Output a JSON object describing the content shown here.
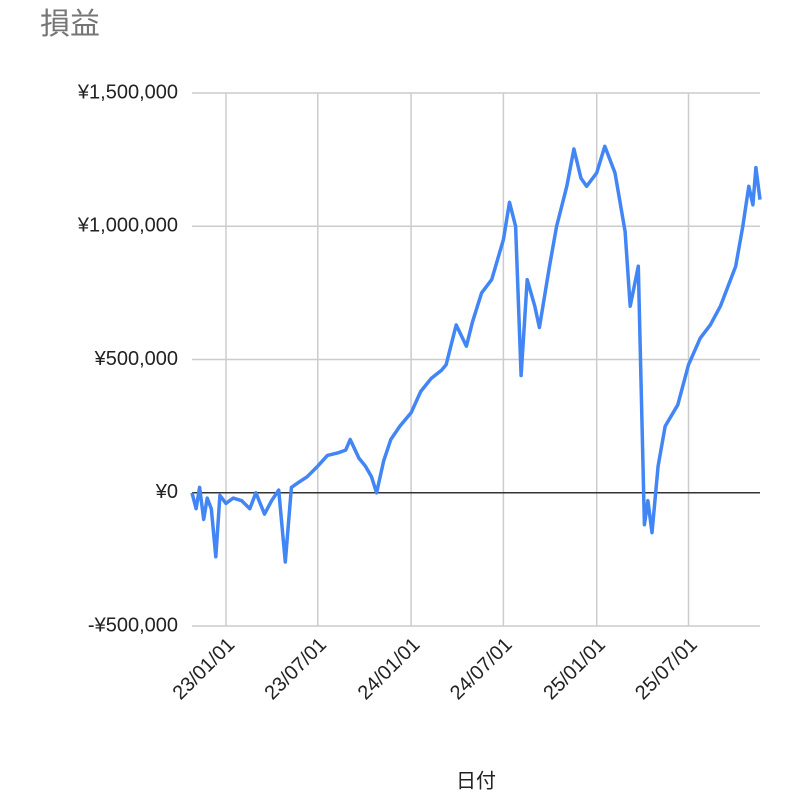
{
  "chart_data": {
    "type": "line",
    "title": "損益",
    "x_label": "日付",
    "x": [
      "22/10/26",
      "22/11/03",
      "22/11/10",
      "22/11/18",
      "22/11/25",
      "22/12/03",
      "22/12/12",
      "22/12/20",
      "23/01/01",
      "23/01/15",
      "23/02/01",
      "23/02/17",
      "23/03/01",
      "23/03/18",
      "23/04/01",
      "23/04/15",
      "23/04/28",
      "23/05/10",
      "23/05/25",
      "23/06/10",
      "23/07/01",
      "23/07/20",
      "23/08/10",
      "23/08/25",
      "23/09/03",
      "23/09/20",
      "23/10/03",
      "23/10/15",
      "23/10/25",
      "23/11/08",
      "23/11/22",
      "23/12/10",
      "24/01/01",
      "24/01/20",
      "24/02/10",
      "24/03/01",
      "24/03/10",
      "24/03/30",
      "24/04/19",
      "24/05/01",
      "24/05/19",
      "24/06/08",
      "24/07/01",
      "24/07/13",
      "24/07/25",
      "24/08/05",
      "24/08/17",
      "24/09/01",
      "24/09/10",
      "24/09/30",
      "24/10/14",
      "24/11/03",
      "24/11/17",
      "24/12/01",
      "24/12/12",
      "25/01/01",
      "25/01/17",
      "25/02/06",
      "25/02/26",
      "25/03/08",
      "25/03/24",
      "25/04/05",
      "25/04/12",
      "25/04/20",
      "25/05/02",
      "25/05/16",
      "25/06/10",
      "25/07/01",
      "25/07/24",
      "25/08/13",
      "25/09/02",
      "25/10/02",
      "25/10/16",
      "25/10/28",
      "25/11/05",
      "25/11/11",
      "25/11/19"
    ],
    "series": [
      {
        "name": "損益",
        "color": "#4285f4",
        "values": [
          0,
          -60000,
          20000,
          -100000,
          -20000,
          -60000,
          -240000,
          -10000,
          -40000,
          -20000,
          -30000,
          -60000,
          0,
          -80000,
          -30000,
          10000,
          -260000,
          20000,
          40000,
          60000,
          100000,
          140000,
          150000,
          160000,
          200000,
          130000,
          100000,
          60000,
          0,
          120000,
          200000,
          250000,
          300000,
          380000,
          430000,
          460000,
          480000,
          630000,
          550000,
          640000,
          750000,
          800000,
          950000,
          1090000,
          1000000,
          440000,
          800000,
          700000,
          620000,
          850000,
          1000000,
          1150000,
          1290000,
          1180000,
          1150000,
          1200000,
          1300000,
          1200000,
          980000,
          700000,
          850000,
          -120000,
          -30000,
          -150000,
          100000,
          250000,
          330000,
          480000,
          580000,
          630000,
          700000,
          850000,
          1000000,
          1150000,
          1080000,
          1220000,
          1100000
        ]
      }
    ],
    "xlim": [
      "22/10/26",
      "25/11/19"
    ],
    "xticks": [
      "23/01/01",
      "23/07/01",
      "24/01/01",
      "24/07/01",
      "25/01/01",
      "25/07/01"
    ],
    "ylim": [
      -500000,
      1500000
    ],
    "yticks": [
      {
        "value": -500000,
        "label": "-¥500,000"
      },
      {
        "value": 0,
        "label": "¥0"
      },
      {
        "value": 500000,
        "label": "¥500,000"
      },
      {
        "value": 1000000,
        "label": "¥1,000,000"
      },
      {
        "value": 1500000,
        "label": "¥1,500,000"
      }
    ],
    "grid": true
  }
}
